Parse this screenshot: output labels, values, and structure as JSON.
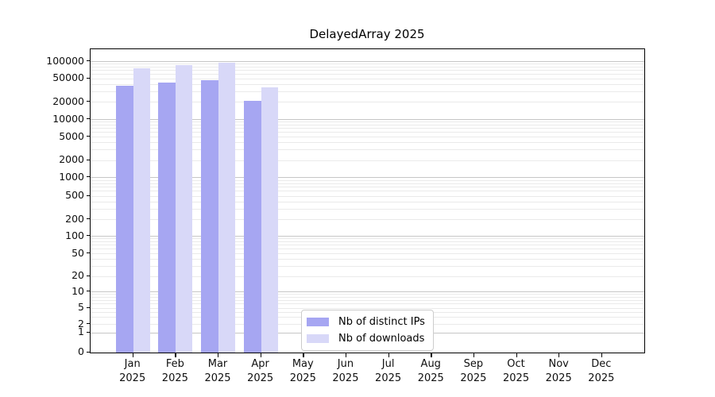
{
  "figure": {
    "title": "DelayedArray 2025"
  },
  "chart_data": {
    "type": "bar",
    "title": "DelayedArray 2025",
    "xlabel": "",
    "ylabel": "",
    "yscale": "log-style axis with 0 baseline (1-2-5 tick progression)",
    "grid": "horizontal, light gray, darker lines at powers of ten",
    "legend_position": "inside bottom-center",
    "frame": "full black box around plot",
    "categories": [
      "Jan 2025",
      "Feb 2025",
      "Mar 2025",
      "Apr 2025",
      "May 2025",
      "Jun 2025",
      "Jul 2025",
      "Aug 2025",
      "Sep 2025",
      "Oct 2025",
      "Nov 2025",
      "Dec 2025"
    ],
    "yticks": [
      0,
      1,
      2,
      5,
      10,
      20,
      50,
      100,
      200,
      500,
      1000,
      2000,
      5000,
      10000,
      20000,
      50000,
      100000
    ],
    "ylim": [
      0,
      170000
    ],
    "series": [
      {
        "name": "Nb of distinct IPs",
        "color": "#a6a6f2",
        "values": [
          38000,
          42500,
          47000,
          21000,
          0,
          0,
          0,
          0,
          0,
          0,
          0,
          0
        ]
      },
      {
        "name": "Nb of downloads",
        "color": "#d8d8f8",
        "values": [
          77000,
          85500,
          95000,
          36000,
          0,
          0,
          0,
          0,
          0,
          0,
          0,
          0
        ]
      }
    ]
  }
}
